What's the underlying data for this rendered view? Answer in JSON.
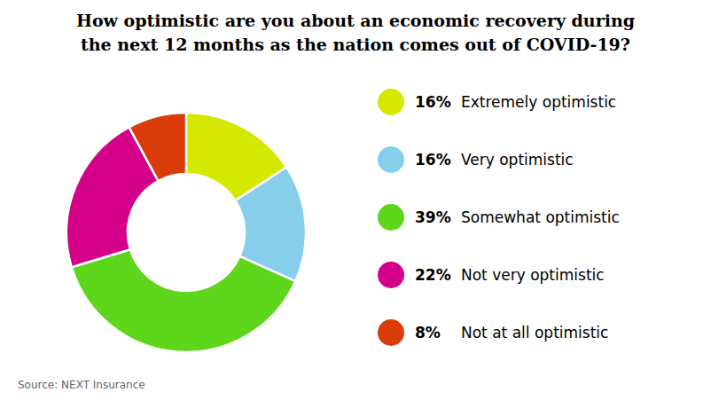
{
  "chart_data": {
    "type": "pie",
    "title": "How optimistic are you about an economic recovery during\nthe next 12 months as the nation comes out of COVID-19?",
    "categories": [
      "Extremely optimistic",
      "Very optimistic",
      "Somewhat optimistic",
      "Not very optimistic",
      "Not at all optimistic"
    ],
    "values": [
      16,
      16,
      39,
      22,
      8
    ],
    "value_labels": [
      "16%",
      "16%",
      "39%",
      "22%",
      "8%"
    ],
    "colors": [
      "#d4e800",
      "#87ceeb",
      "#5dd61c",
      "#d4008a",
      "#d93c0a"
    ],
    "legend": "right",
    "annotations": [
      "Source: NEXT Insurance"
    ]
  }
}
